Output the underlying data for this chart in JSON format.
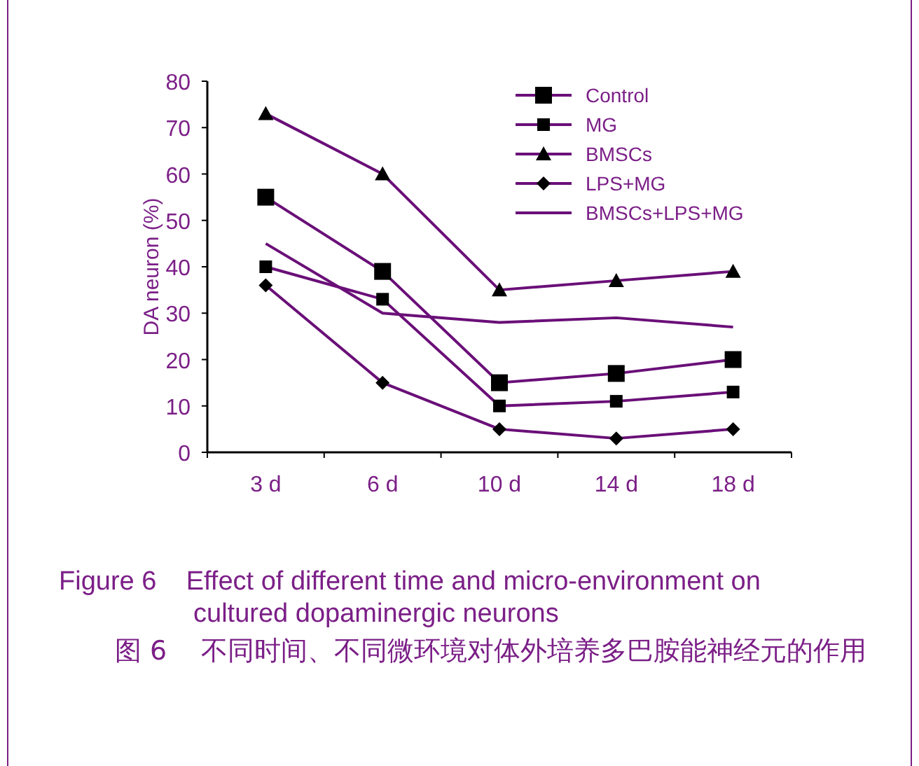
{
  "chart_data": {
    "type": "line",
    "title": "Figure 6    Effect of different time and micro-environment on cultured dopaminergic neurons",
    "subtitle": "图 6    不同时间、不同微环境对体外培养多巴胺能神经元的作用",
    "ylabel": "DA neuron (%)",
    "categories": [
      "3 d",
      "6 d",
      "10 d",
      "14 d",
      "18 d"
    ],
    "ylim": [
      0,
      80
    ],
    "yticks": [
      0,
      10,
      20,
      30,
      40,
      50,
      60,
      70,
      80
    ],
    "legend": "top right",
    "grid": false,
    "series": [
      {
        "name": "Control",
        "color": "#6a0f78",
        "marker": "square",
        "values": [
          55,
          39,
          15,
          17,
          20
        ]
      },
      {
        "name": "MG",
        "color": "#6a0f78",
        "marker": "square",
        "values": [
          40,
          33,
          10,
          11,
          13
        ]
      },
      {
        "name": "BMSCs",
        "color": "#6a0f78",
        "marker": "triangle",
        "values": [
          73,
          60,
          35,
          37,
          39
        ]
      },
      {
        "name": "LPS+MG",
        "color": "#6a0f78",
        "marker": "diamond",
        "values": [
          36,
          15,
          5,
          3,
          5
        ]
      },
      {
        "name": "BMSCs+LPS+MG",
        "color": "#6a0f78",
        "marker": "none",
        "values": [
          45,
          30,
          28,
          29,
          27
        ]
      }
    ]
  }
}
